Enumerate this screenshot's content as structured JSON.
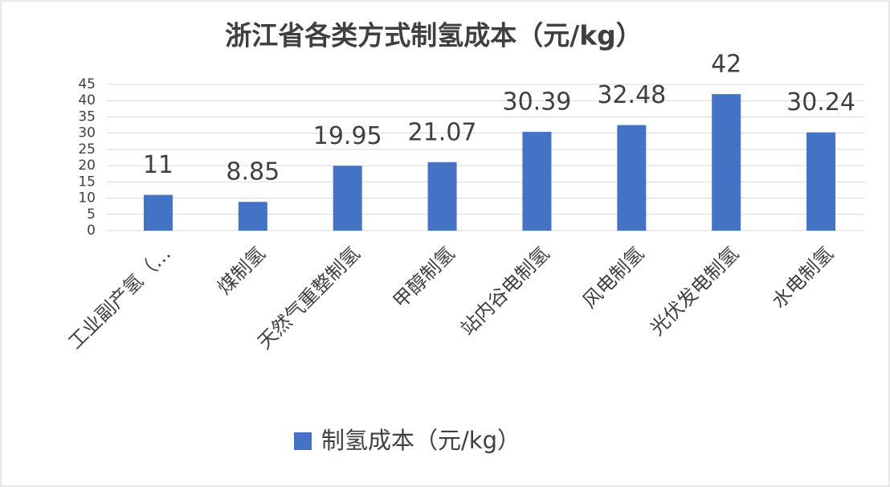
{
  "chart_data": {
    "type": "bar",
    "title": "浙江省各类方式制氢成本（元/kg）",
    "categories": [
      "工业副产氢（…",
      "煤制氢",
      "天然气重整制氢",
      "甲醇制氢",
      "站内谷电制氢",
      "风电制氢",
      "光伏发电制氢",
      "水电制氢"
    ],
    "series": [
      {
        "name": "制氢成本（元/kg）",
        "color": "#4472c4",
        "values": [
          11,
          8.85,
          19.95,
          21.07,
          30.39,
          32.48,
          42,
          30.24
        ]
      }
    ],
    "ylim": [
      0,
      45
    ],
    "yticks": [
      0,
      5,
      10,
      15,
      20,
      25,
      30,
      35,
      40,
      45
    ],
    "grid": true
  }
}
